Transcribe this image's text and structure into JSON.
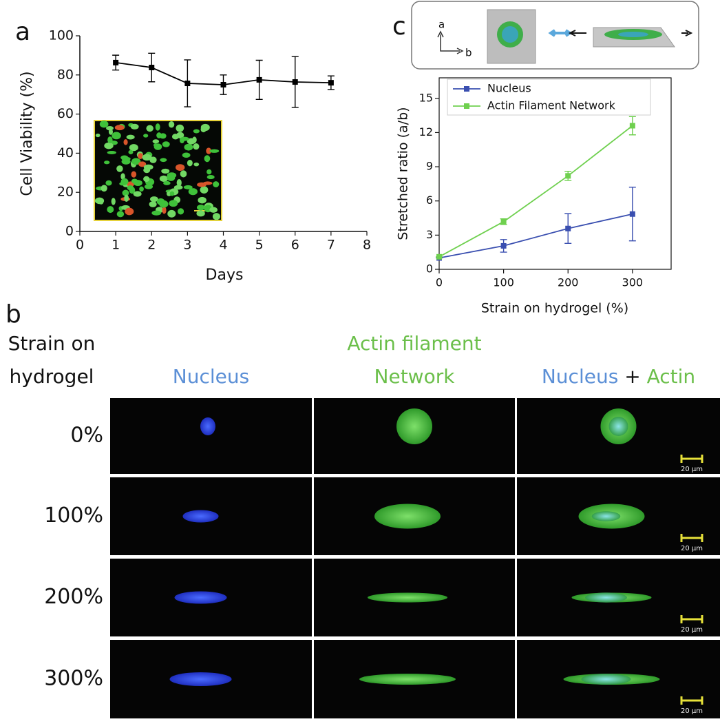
{
  "chart_data": [
    {
      "type": "line",
      "label": "a",
      "xlabel": "Days",
      "ylabel": "Cell Viability (%)",
      "x": [
        1,
        2,
        3,
        4,
        5,
        6,
        7
      ],
      "series": [
        {
          "color": "#000000",
          "marker": "square",
          "values": [
            86.3,
            83.8,
            75.7,
            75,
            77.5,
            76.4,
            76
          ],
          "errors": [
            3.8,
            7.3,
            12,
            5,
            10,
            13,
            3.5
          ]
        }
      ],
      "xlim": [
        0,
        8
      ],
      "xticks": [
        0,
        1,
        2,
        3,
        4,
        5,
        6,
        7,
        8
      ],
      "ylim": [
        0,
        100
      ],
      "yticks": [
        0,
        20,
        40,
        60,
        80,
        100
      ]
    },
    {
      "type": "line",
      "label": "c",
      "xlabel": "Strain on hydrogel (%)",
      "ylabel": "Stretched ratio (a/b)",
      "x": [
        0,
        100,
        200,
        300
      ],
      "series": [
        {
          "name": "Nucleus",
          "color": "#3a4fb0",
          "marker": "square",
          "values": [
            1.0,
            2.06,
            3.58,
            4.85
          ],
          "errors": [
            0,
            0.55,
            1.3,
            2.35
          ]
        },
        {
          "name": "Actin Filament Network",
          "color": "#6fd04f",
          "marker": "square",
          "values": [
            1.1,
            4.18,
            8.2,
            12.6
          ],
          "errors": [
            0,
            0.25,
            0.4,
            0.8
          ]
        }
      ],
      "xlim": [
        0,
        360
      ],
      "xticks": [
        0,
        100,
        200,
        300
      ],
      "ylim": [
        0,
        16.8
      ],
      "yticks": [
        0,
        3,
        6,
        9,
        12,
        15
      ],
      "legend": "upper left"
    }
  ],
  "schematic": {
    "axis_labels": [
      "a",
      "b"
    ]
  },
  "panel_b": {
    "label": "b",
    "row_header": [
      "Strain on",
      "hydrogel"
    ],
    "column_headers": [
      {
        "lines": [
          [
            {
              "text": "Nucleus",
              "color": "#5b8fd6"
            }
          ]
        ]
      },
      {
        "lines": [
          [
            {
              "text": "Actin filament",
              "color": "#6bbf4a"
            }
          ],
          [
            {
              "text": "Network",
              "color": "#6bbf4a"
            }
          ]
        ]
      },
      {
        "lines": [
          [
            {
              "text": "Nucleus",
              "color": "#5b8fd6"
            },
            {
              "text": "+",
              "color": "#111111"
            },
            {
              "text": "Actin",
              "color": "#6bbf4a"
            }
          ]
        ]
      }
    ],
    "rows": [
      "0%",
      "100%",
      "200%",
      "300%"
    ],
    "scale_bar": "20 µm"
  }
}
